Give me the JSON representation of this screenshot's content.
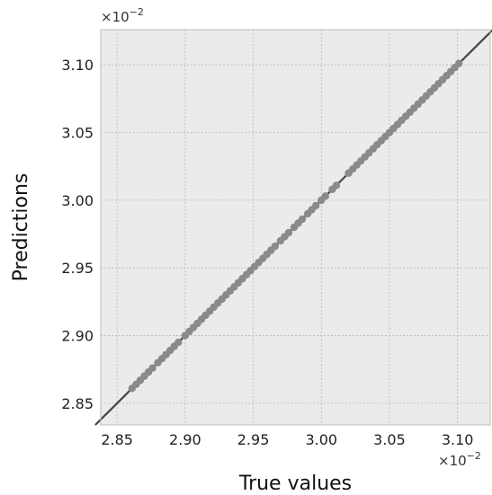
{
  "chart_data": {
    "type": "scatter",
    "title": "",
    "xlabel": "True values",
    "ylabel": "Predictions",
    "x_scale_text": "×10",
    "x_scale_exp": "−2",
    "y_scale_text": "×10",
    "y_scale_exp": "−2",
    "xlim": [
      2.838,
      3.124
    ],
    "ylim": [
      2.834,
      3.126
    ],
    "x_ticks": [
      2.85,
      2.9,
      2.95,
      3.0,
      3.05,
      3.1
    ],
    "x_tick_labels": [
      "2.85",
      "2.90",
      "2.95",
      "3.00",
      "3.05",
      "3.10"
    ],
    "y_ticks": [
      2.85,
      2.9,
      2.95,
      3.0,
      3.05,
      3.1
    ],
    "y_tick_labels": [
      "2.85",
      "2.90",
      "2.95",
      "3.00",
      "3.05",
      "3.10"
    ],
    "grid": true,
    "reference_line": {
      "type": "identity",
      "from": [
        2.834,
        2.834
      ],
      "to": [
        3.126,
        3.126
      ],
      "color": "#444444"
    },
    "point_color": "#8a8a8a",
    "background_color": "#ebebeb",
    "grid_color": "#b8b8b8",
    "series": [
      {
        "values": [
          [
            2.861,
            2.861
          ],
          [
            2.864,
            2.864
          ],
          [
            2.867,
            2.867
          ],
          [
            2.87,
            2.87
          ],
          [
            2.873,
            2.873
          ],
          [
            2.876,
            2.876
          ],
          [
            2.88,
            2.88
          ],
          [
            2.883,
            2.883
          ],
          [
            2.886,
            2.886
          ],
          [
            2.889,
            2.889
          ],
          [
            2.892,
            2.892
          ],
          [
            2.895,
            2.895
          ],
          [
            2.9,
            2.9
          ],
          [
            2.903,
            2.903
          ],
          [
            2.906,
            2.906
          ],
          [
            2.909,
            2.909
          ],
          [
            2.912,
            2.912
          ],
          [
            2.915,
            2.915
          ],
          [
            2.918,
            2.918
          ],
          [
            2.921,
            2.921
          ],
          [
            2.924,
            2.924
          ],
          [
            2.927,
            2.927
          ],
          [
            2.93,
            2.93
          ],
          [
            2.933,
            2.933
          ],
          [
            2.936,
            2.936
          ],
          [
            2.939,
            2.939
          ],
          [
            2.942,
            2.942
          ],
          [
            2.945,
            2.945
          ],
          [
            2.948,
            2.948
          ],
          [
            2.951,
            2.951
          ],
          [
            2.954,
            2.954
          ],
          [
            2.957,
            2.957
          ],
          [
            2.96,
            2.96
          ],
          [
            2.963,
            2.963
          ],
          [
            2.966,
            2.966
          ],
          [
            2.97,
            2.97
          ],
          [
            2.973,
            2.973
          ],
          [
            2.976,
            2.976
          ],
          [
            2.98,
            2.98
          ],
          [
            2.983,
            2.983
          ],
          [
            2.986,
            2.986
          ],
          [
            2.99,
            2.99
          ],
          [
            2.993,
            2.993
          ],
          [
            2.996,
            2.996
          ],
          [
            3.0,
            3.0
          ],
          [
            3.003,
            3.003
          ],
          [
            3.008,
            3.008
          ],
          [
            3.011,
            3.011
          ],
          [
            3.02,
            3.02
          ],
          [
            3.023,
            3.023
          ],
          [
            3.026,
            3.026
          ],
          [
            3.029,
            3.029
          ],
          [
            3.032,
            3.032
          ],
          [
            3.035,
            3.035
          ],
          [
            3.038,
            3.038
          ],
          [
            3.041,
            3.041
          ],
          [
            3.044,
            3.044
          ],
          [
            3.047,
            3.047
          ],
          [
            3.05,
            3.05
          ],
          [
            3.053,
            3.053
          ],
          [
            3.056,
            3.056
          ],
          [
            3.059,
            3.059
          ],
          [
            3.062,
            3.062
          ],
          [
            3.065,
            3.065
          ],
          [
            3.068,
            3.068
          ],
          [
            3.071,
            3.071
          ],
          [
            3.074,
            3.074
          ],
          [
            3.077,
            3.077
          ],
          [
            3.08,
            3.08
          ],
          [
            3.083,
            3.083
          ],
          [
            3.086,
            3.086
          ],
          [
            3.089,
            3.089
          ],
          [
            3.092,
            3.092
          ],
          [
            3.095,
            3.095
          ],
          [
            3.098,
            3.098
          ],
          [
            3.101,
            3.101
          ]
        ]
      }
    ]
  }
}
